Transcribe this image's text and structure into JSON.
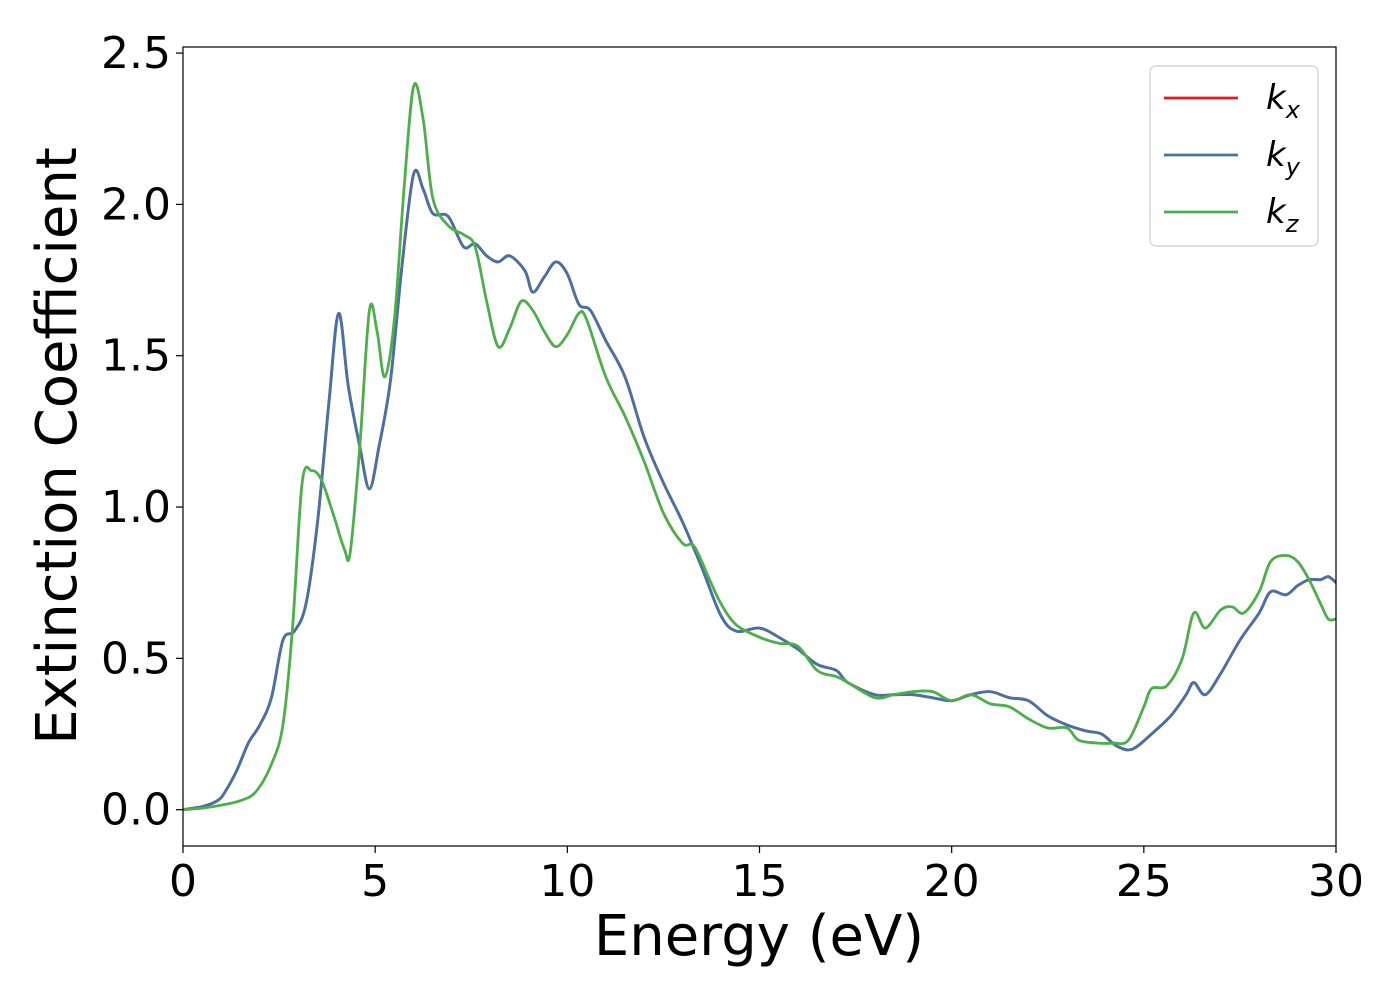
{
  "chart_data": {
    "type": "line",
    "xlabel": "Energy (eV)",
    "ylabel": "Extinction Coefficient",
    "xlim": [
      0,
      30
    ],
    "ylim": [
      -0.12,
      2.52
    ],
    "xticks": [
      "0",
      "5",
      "10",
      "15",
      "20",
      "25",
      "30"
    ],
    "yticks": [
      "0.0",
      "0.5",
      "1.0",
      "1.5",
      "2.0",
      "2.5"
    ],
    "grid": false,
    "legend_position": "top-right",
    "series": [
      {
        "name": "k_x",
        "legend_main": "k",
        "legend_sub": "x",
        "color": "#e41a1c",
        "points": [
          [
            0,
            0
          ],
          [
            0.5,
            0.01
          ],
          [
            0.9,
            0.03
          ],
          [
            1.1,
            0.06
          ],
          [
            1.4,
            0.13
          ],
          [
            1.7,
            0.22
          ],
          [
            2.0,
            0.28
          ],
          [
            2.3,
            0.37
          ],
          [
            2.6,
            0.56
          ],
          [
            2.9,
            0.59
          ],
          [
            3.2,
            0.68
          ],
          [
            3.5,
            0.95
          ],
          [
            3.8,
            1.35
          ],
          [
            4.05,
            1.64
          ],
          [
            4.3,
            1.4
          ],
          [
            4.6,
            1.2
          ],
          [
            4.85,
            1.06
          ],
          [
            5.1,
            1.2
          ],
          [
            5.4,
            1.42
          ],
          [
            5.7,
            1.8
          ],
          [
            6.0,
            2.1
          ],
          [
            6.25,
            2.05
          ],
          [
            6.5,
            1.97
          ],
          [
            6.9,
            1.96
          ],
          [
            7.3,
            1.86
          ],
          [
            7.6,
            1.87
          ],
          [
            7.9,
            1.83
          ],
          [
            8.2,
            1.81
          ],
          [
            8.5,
            1.83
          ],
          [
            8.9,
            1.78
          ],
          [
            9.1,
            1.71
          ],
          [
            9.4,
            1.76
          ],
          [
            9.7,
            1.81
          ],
          [
            10.0,
            1.77
          ],
          [
            10.3,
            1.67
          ],
          [
            10.6,
            1.65
          ],
          [
            11.0,
            1.55
          ],
          [
            11.5,
            1.43
          ],
          [
            12.0,
            1.23
          ],
          [
            12.5,
            1.08
          ],
          [
            13.0,
            0.95
          ],
          [
            13.5,
            0.8
          ],
          [
            14.0,
            0.64
          ],
          [
            14.4,
            0.59
          ],
          [
            15.0,
            0.6
          ],
          [
            15.5,
            0.57
          ],
          [
            16.0,
            0.53
          ],
          [
            16.5,
            0.48
          ],
          [
            17.0,
            0.46
          ],
          [
            17.3,
            0.42
          ],
          [
            18.0,
            0.38
          ],
          [
            18.5,
            0.38
          ],
          [
            19.0,
            0.38
          ],
          [
            19.5,
            0.37
          ],
          [
            20.0,
            0.36
          ],
          [
            20.5,
            0.38
          ],
          [
            21.0,
            0.39
          ],
          [
            21.5,
            0.37
          ],
          [
            22.0,
            0.36
          ],
          [
            22.5,
            0.31
          ],
          [
            23.0,
            0.28
          ],
          [
            23.5,
            0.26
          ],
          [
            23.9,
            0.25
          ],
          [
            24.3,
            0.21
          ],
          [
            24.7,
            0.2
          ],
          [
            25.2,
            0.25
          ],
          [
            25.7,
            0.31
          ],
          [
            26.1,
            0.38
          ],
          [
            26.3,
            0.42
          ],
          [
            26.6,
            0.38
          ],
          [
            27.0,
            0.45
          ],
          [
            27.5,
            0.56
          ],
          [
            28.0,
            0.65
          ],
          [
            28.3,
            0.72
          ],
          [
            28.7,
            0.71
          ],
          [
            29.0,
            0.74
          ],
          [
            29.3,
            0.76
          ],
          [
            29.6,
            0.76
          ],
          [
            29.8,
            0.77
          ],
          [
            30.0,
            0.75
          ]
        ]
      },
      {
        "name": "k_y",
        "legend_main": "k",
        "legend_sub": "y",
        "color": "#4572a7",
        "points": [
          [
            0,
            0
          ],
          [
            0.5,
            0.01
          ],
          [
            0.9,
            0.03
          ],
          [
            1.1,
            0.06
          ],
          [
            1.4,
            0.13
          ],
          [
            1.7,
            0.22
          ],
          [
            2.0,
            0.28
          ],
          [
            2.3,
            0.37
          ],
          [
            2.6,
            0.56
          ],
          [
            2.9,
            0.59
          ],
          [
            3.2,
            0.68
          ],
          [
            3.5,
            0.95
          ],
          [
            3.8,
            1.35
          ],
          [
            4.05,
            1.64
          ],
          [
            4.3,
            1.4
          ],
          [
            4.6,
            1.2
          ],
          [
            4.85,
            1.06
          ],
          [
            5.1,
            1.2
          ],
          [
            5.4,
            1.42
          ],
          [
            5.7,
            1.8
          ],
          [
            6.0,
            2.1
          ],
          [
            6.25,
            2.05
          ],
          [
            6.5,
            1.97
          ],
          [
            6.9,
            1.96
          ],
          [
            7.3,
            1.86
          ],
          [
            7.6,
            1.87
          ],
          [
            7.9,
            1.83
          ],
          [
            8.2,
            1.81
          ],
          [
            8.5,
            1.83
          ],
          [
            8.9,
            1.78
          ],
          [
            9.1,
            1.71
          ],
          [
            9.4,
            1.76
          ],
          [
            9.7,
            1.81
          ],
          [
            10.0,
            1.77
          ],
          [
            10.3,
            1.67
          ],
          [
            10.6,
            1.65
          ],
          [
            11.0,
            1.55
          ],
          [
            11.5,
            1.43
          ],
          [
            12.0,
            1.23
          ],
          [
            12.5,
            1.08
          ],
          [
            13.0,
            0.95
          ],
          [
            13.5,
            0.8
          ],
          [
            14.0,
            0.64
          ],
          [
            14.4,
            0.59
          ],
          [
            15.0,
            0.6
          ],
          [
            15.5,
            0.57
          ],
          [
            16.0,
            0.53
          ],
          [
            16.5,
            0.48
          ],
          [
            17.0,
            0.46
          ],
          [
            17.3,
            0.42
          ],
          [
            18.0,
            0.38
          ],
          [
            18.5,
            0.38
          ],
          [
            19.0,
            0.38
          ],
          [
            19.5,
            0.37
          ],
          [
            20.0,
            0.36
          ],
          [
            20.5,
            0.38
          ],
          [
            21.0,
            0.39
          ],
          [
            21.5,
            0.37
          ],
          [
            22.0,
            0.36
          ],
          [
            22.5,
            0.31
          ],
          [
            23.0,
            0.28
          ],
          [
            23.5,
            0.26
          ],
          [
            23.9,
            0.25
          ],
          [
            24.3,
            0.21
          ],
          [
            24.7,
            0.2
          ],
          [
            25.2,
            0.25
          ],
          [
            25.7,
            0.31
          ],
          [
            26.1,
            0.38
          ],
          [
            26.3,
            0.42
          ],
          [
            26.6,
            0.38
          ],
          [
            27.0,
            0.45
          ],
          [
            27.5,
            0.56
          ],
          [
            28.0,
            0.65
          ],
          [
            28.3,
            0.72
          ],
          [
            28.7,
            0.71
          ],
          [
            29.0,
            0.74
          ],
          [
            29.3,
            0.76
          ],
          [
            29.6,
            0.76
          ],
          [
            29.8,
            0.77
          ],
          [
            30.0,
            0.75
          ]
        ]
      },
      {
        "name": "k_z",
        "legend_main": "k",
        "legend_sub": "z",
        "color": "#4daf4a",
        "points": [
          [
            0,
            0
          ],
          [
            0.5,
            0.005
          ],
          [
            1.0,
            0.015
          ],
          [
            1.5,
            0.03
          ],
          [
            1.9,
            0.06
          ],
          [
            2.3,
            0.15
          ],
          [
            2.6,
            0.28
          ],
          [
            2.85,
            0.6
          ],
          [
            3.1,
            1.08
          ],
          [
            3.35,
            1.12
          ],
          [
            3.6,
            1.09
          ],
          [
            3.9,
            0.98
          ],
          [
            4.2,
            0.86
          ],
          [
            4.35,
            0.85
          ],
          [
            4.6,
            1.2
          ],
          [
            4.85,
            1.65
          ],
          [
            5.05,
            1.58
          ],
          [
            5.25,
            1.43
          ],
          [
            5.5,
            1.62
          ],
          [
            5.75,
            2.05
          ],
          [
            6.0,
            2.39
          ],
          [
            6.25,
            2.28
          ],
          [
            6.5,
            2.02
          ],
          [
            6.9,
            1.93
          ],
          [
            7.3,
            1.9
          ],
          [
            7.6,
            1.86
          ],
          [
            7.9,
            1.68
          ],
          [
            8.2,
            1.53
          ],
          [
            8.5,
            1.59
          ],
          [
            8.8,
            1.68
          ],
          [
            9.1,
            1.65
          ],
          [
            9.4,
            1.58
          ],
          [
            9.7,
            1.53
          ],
          [
            10.0,
            1.57
          ],
          [
            10.3,
            1.64
          ],
          [
            10.5,
            1.62
          ],
          [
            11.0,
            1.43
          ],
          [
            11.5,
            1.3
          ],
          [
            12.0,
            1.15
          ],
          [
            12.5,
            0.98
          ],
          [
            13.0,
            0.88
          ],
          [
            13.3,
            0.87
          ],
          [
            13.7,
            0.76
          ],
          [
            14.0,
            0.68
          ],
          [
            14.4,
            0.61
          ],
          [
            15.0,
            0.57
          ],
          [
            15.5,
            0.55
          ],
          [
            16.0,
            0.54
          ],
          [
            16.5,
            0.46
          ],
          [
            17.0,
            0.44
          ],
          [
            17.3,
            0.42
          ],
          [
            18.0,
            0.37
          ],
          [
            18.5,
            0.38
          ],
          [
            19.0,
            0.39
          ],
          [
            19.5,
            0.39
          ],
          [
            20.0,
            0.36
          ],
          [
            20.5,
            0.38
          ],
          [
            21.0,
            0.35
          ],
          [
            21.5,
            0.34
          ],
          [
            22.0,
            0.3
          ],
          [
            22.5,
            0.27
          ],
          [
            23.0,
            0.27
          ],
          [
            23.3,
            0.23
          ],
          [
            23.8,
            0.22
          ],
          [
            24.2,
            0.22
          ],
          [
            24.6,
            0.23
          ],
          [
            25.0,
            0.34
          ],
          [
            25.2,
            0.4
          ],
          [
            25.6,
            0.41
          ],
          [
            26.0,
            0.5
          ],
          [
            26.3,
            0.65
          ],
          [
            26.6,
            0.6
          ],
          [
            27.0,
            0.66
          ],
          [
            27.3,
            0.67
          ],
          [
            27.6,
            0.65
          ],
          [
            28.0,
            0.72
          ],
          [
            28.3,
            0.82
          ],
          [
            28.7,
            0.84
          ],
          [
            29.0,
            0.82
          ],
          [
            29.3,
            0.76
          ],
          [
            29.6,
            0.68
          ],
          [
            29.8,
            0.63
          ],
          [
            30.0,
            0.63
          ]
        ]
      }
    ]
  }
}
